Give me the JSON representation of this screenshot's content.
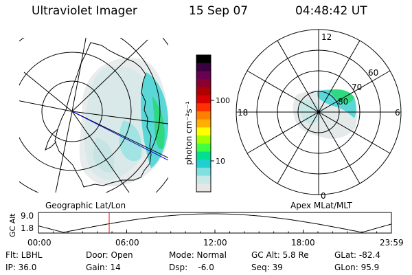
{
  "header": {
    "title": "Ultraviolet Imager",
    "date": "15 Sep 07",
    "time": "04:48:42 UT"
  },
  "geo_panel": {
    "label": "Geographic Lat/Lon"
  },
  "polar_panel": {
    "label": "Apex MLat/MLT",
    "mlt_labels": [
      "12",
      "18",
      "6",
      "0"
    ],
    "lat_labels": [
      "60",
      "70",
      "80"
    ]
  },
  "colorbar": {
    "unit_label": "photon cm⁻²s⁻¹",
    "ticks": [
      "100",
      "10"
    ],
    "colors": [
      "#000000",
      "#3a0040",
      "#6a0050",
      "#8a0030",
      "#b00000",
      "#d80000",
      "#ff3000",
      "#ff8000",
      "#ffb000",
      "#ffff00",
      "#a0ff00",
      "#40ff40",
      "#00e090",
      "#20d0d0",
      "#80e0e0",
      "#c8e8e8",
      "#e6e6e6"
    ]
  },
  "orbit": {
    "ylabel": "GC Alt",
    "yticks": [
      "9.0",
      "1.8"
    ],
    "xticks": [
      "00:00",
      "06:00",
      "12:00",
      "18:00",
      "23:59"
    ],
    "marker_time_hours": 4.81
  },
  "info": {
    "filter": "Flt: LBHL",
    "ip": "IP: 36.0",
    "door": "Door: Open",
    "gain": "Gain: 14",
    "mode": "Mode: Normal",
    "dsp": "Dsp:    -6.0",
    "gc_alt": "GC Alt: 5.8 Re",
    "seq": "Seq: 39",
    "glat": "GLat: -82.4",
    "glon": "GLon: 95.9"
  }
}
